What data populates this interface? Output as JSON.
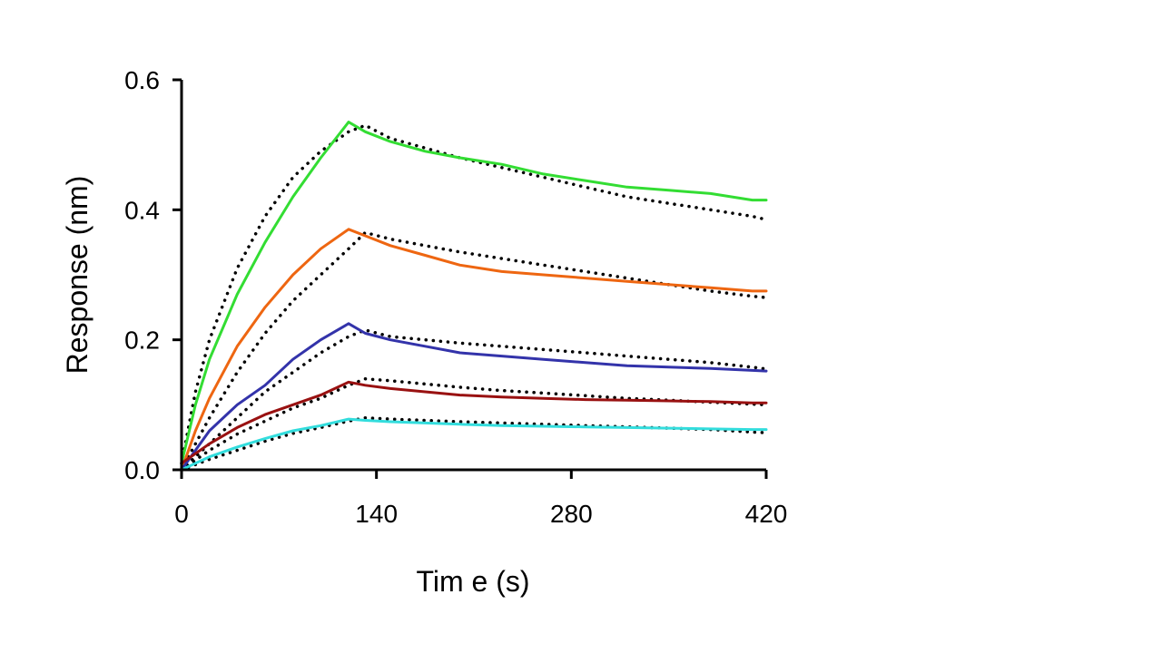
{
  "chart_data": {
    "type": "line",
    "xlabel": "Tim e (s)",
    "ylabel": "Response (nm)",
    "xlim": [
      0,
      420
    ],
    "ylim": [
      0,
      0.6
    ],
    "x_ticks": [
      0,
      140,
      280,
      420
    ],
    "x_tick_labels": [
      "0",
      "140",
      "280",
      "420"
    ],
    "y_ticks": [
      0,
      0.2,
      0.4,
      0.6
    ],
    "y_tick_labels": [
      "0.0",
      "0.2",
      "0.4",
      "0.6"
    ],
    "grid": false,
    "legend": "none",
    "fit_style": "black dotted",
    "series": [
      {
        "color": "#33dd33",
        "x": [
          0,
          10,
          20,
          40,
          60,
          80,
          100,
          120,
          132,
          150,
          175,
          200,
          230,
          260,
          290,
          320,
          350,
          380,
          410,
          420
        ],
        "values": [
          0.01,
          0.1,
          0.17,
          0.27,
          0.35,
          0.42,
          0.48,
          0.535,
          0.52,
          0.505,
          0.49,
          0.48,
          0.47,
          0.455,
          0.445,
          0.435,
          0.43,
          0.425,
          0.415,
          0.415
        ],
        "fit_values": [
          0.01,
          0.12,
          0.2,
          0.31,
          0.39,
          0.45,
          0.49,
          0.52,
          0.53,
          0.51,
          0.495,
          0.48,
          0.465,
          0.45,
          0.435,
          0.42,
          0.41,
          0.4,
          0.39,
          0.385
        ]
      },
      {
        "color": "#ee6611",
        "x": [
          0,
          10,
          20,
          40,
          60,
          80,
          100,
          120,
          132,
          150,
          175,
          200,
          230,
          260,
          290,
          320,
          350,
          380,
          410,
          420
        ],
        "values": [
          0.0,
          0.06,
          0.11,
          0.19,
          0.25,
          0.3,
          0.34,
          0.37,
          0.36,
          0.345,
          0.33,
          0.315,
          0.305,
          0.3,
          0.295,
          0.29,
          0.285,
          0.28,
          0.275,
          0.275
        ],
        "fit_values": [
          0.0,
          0.04,
          0.08,
          0.15,
          0.21,
          0.26,
          0.3,
          0.34,
          0.365,
          0.355,
          0.345,
          0.335,
          0.325,
          0.315,
          0.305,
          0.295,
          0.285,
          0.275,
          0.267,
          0.265
        ]
      },
      {
        "color": "#3333aa",
        "x": [
          0,
          10,
          20,
          40,
          60,
          80,
          100,
          120,
          132,
          150,
          175,
          200,
          230,
          260,
          290,
          320,
          350,
          380,
          410,
          420
        ],
        "values": [
          0.0,
          0.03,
          0.06,
          0.1,
          0.13,
          0.17,
          0.2,
          0.225,
          0.21,
          0.2,
          0.19,
          0.18,
          0.175,
          0.17,
          0.165,
          0.16,
          0.158,
          0.156,
          0.153,
          0.152
        ],
        "fit_values": [
          0.0,
          0.02,
          0.04,
          0.08,
          0.12,
          0.15,
          0.18,
          0.205,
          0.215,
          0.205,
          0.2,
          0.195,
          0.19,
          0.185,
          0.18,
          0.175,
          0.17,
          0.165,
          0.158,
          0.155
        ]
      },
      {
        "color": "#991111",
        "x": [
          0,
          10,
          20,
          40,
          60,
          80,
          100,
          120,
          132,
          150,
          175,
          200,
          230,
          260,
          290,
          320,
          350,
          380,
          410,
          420
        ],
        "values": [
          0.01,
          0.025,
          0.04,
          0.065,
          0.085,
          0.1,
          0.115,
          0.135,
          0.13,
          0.125,
          0.12,
          0.115,
          0.112,
          0.11,
          0.108,
          0.107,
          0.106,
          0.105,
          0.103,
          0.103
        ],
        "fit_values": [
          0.0,
          0.015,
          0.03,
          0.055,
          0.075,
          0.095,
          0.11,
          0.13,
          0.14,
          0.137,
          0.132,
          0.127,
          0.122,
          0.118,
          0.114,
          0.11,
          0.107,
          0.104,
          0.101,
          0.1
        ]
      },
      {
        "color": "#33dddd",
        "x": [
          0,
          10,
          20,
          40,
          60,
          80,
          100,
          120,
          132,
          150,
          175,
          200,
          230,
          260,
          290,
          320,
          350,
          380,
          410,
          420
        ],
        "values": [
          0.0,
          0.01,
          0.02,
          0.035,
          0.048,
          0.06,
          0.068,
          0.078,
          0.076,
          0.074,
          0.072,
          0.07,
          0.068,
          0.067,
          0.066,
          0.065,
          0.064,
          0.063,
          0.062,
          0.062
        ],
        "fit_values": [
          0.0,
          0.008,
          0.016,
          0.03,
          0.044,
          0.056,
          0.065,
          0.075,
          0.08,
          0.078,
          0.076,
          0.074,
          0.072,
          0.07,
          0.068,
          0.066,
          0.064,
          0.062,
          0.058,
          0.057
        ]
      }
    ]
  }
}
